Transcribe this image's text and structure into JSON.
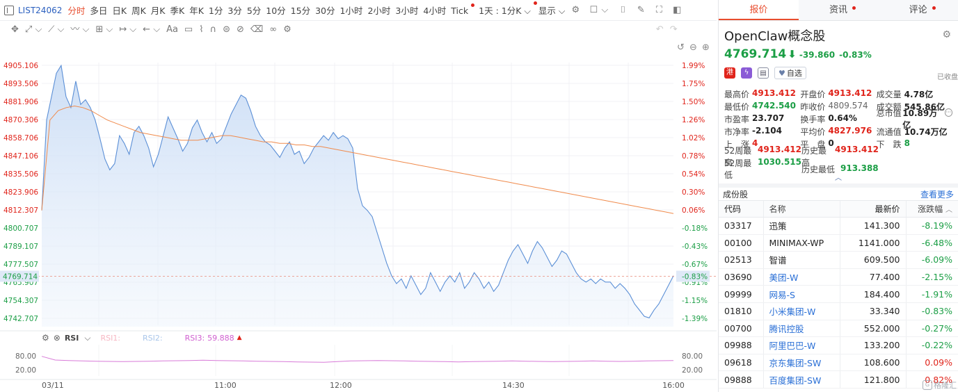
{
  "topbar": {
    "symbol": "LIST24062",
    "periods": [
      "分时",
      "多日",
      "日K",
      "周K",
      "月K",
      "季K",
      "年K",
      "1分",
      "3分",
      "5分",
      "10分",
      "15分",
      "30分",
      "1小时",
      "2小时",
      "3小时",
      "4小时",
      "Tick"
    ],
    "active_period": "分时",
    "multi_period": "1天 : 1分K",
    "display": "显示"
  },
  "chart": {
    "price_ticks": [
      "4905.106",
      "4893.506",
      "4881.906",
      "4870.306",
      "4858.706",
      "4847.106",
      "4835.506",
      "4823.906",
      "4812.307",
      "4800.707",
      "4789.107",
      "4777.507",
      "4765.907",
      "4754.307",
      "4742.707"
    ],
    "pct_ticks": [
      "1.99%",
      "1.75%",
      "1.50%",
      "1.26%",
      "1.02%",
      "0.78%",
      "0.54%",
      "0.30%",
      "0.06%",
      "-0.18%",
      "-0.43%",
      "-0.67%",
      "-0.91%",
      "-1.15%",
      "-1.39%"
    ],
    "current_price_label": "4769.714",
    "current_pct_label": "-0.83%",
    "time_labels": [
      "03/11",
      "11:00",
      "12:00",
      "14:30",
      "16:00"
    ],
    "rsi": {
      "name": "RSI",
      "l1": "RSI1:",
      "l2": "RSI2:",
      "l3": "RSI3:",
      "v3": "59.888",
      "ticks": [
        "80.00",
        "20.00"
      ]
    }
  },
  "chart_data": {
    "type": "line",
    "x_labels": [
      "03/11",
      "11:00",
      "12:00",
      "14:30",
      "16:00"
    ],
    "prev_close": 4809.574,
    "ylim": [
      4742.707,
      4905.106
    ],
    "series": [
      {
        "values": [
          4812,
          4870,
          4885,
          4900,
          4905,
          4885,
          4878,
          4895,
          4880,
          4883,
          4878,
          4870,
          4858,
          4845,
          4838,
          4842,
          4860,
          4855,
          4848,
          4862,
          4866,
          4860,
          4852,
          4840,
          4848,
          4860,
          4872,
          4865,
          4858,
          4850,
          4855,
          4865,
          4870,
          4862,
          4856,
          4862,
          4855,
          4858,
          4866,
          4874,
          4880,
          4886,
          4884,
          4876,
          4866,
          4860,
          4856,
          4854,
          4850,
          4846,
          4852,
          4856,
          4848,
          4850,
          4842,
          4846,
          4852,
          4856,
          4860,
          4857,
          4862,
          4858,
          4860,
          4858,
          4852,
          4826,
          4815,
          4812,
          4808,
          4798,
          4788,
          4778,
          4770,
          4765,
          4768,
          4762,
          4770,
          4764,
          4758,
          4762,
          4772,
          4766,
          4760,
          4766,
          4770,
          4766,
          4772,
          4762,
          4766,
          4772,
          4768,
          4762,
          4766,
          4760,
          4764,
          4772,
          4780,
          4786,
          4790,
          4784,
          4778,
          4786,
          4792,
          4788,
          4782,
          4776,
          4780,
          4786,
          4784,
          4778,
          4772,
          4768,
          4766,
          4768,
          4765,
          4768,
          4766,
          4766,
          4762,
          4765,
          4762,
          4758,
          4752,
          4748,
          4744,
          4743,
          4748,
          4752,
          4758,
          4764,
          4770
        ]
      },
      {
        "values": [
          4812,
          4870,
          4876,
          4878,
          4879,
          4878,
          4876,
          4873,
          4870,
          4868,
          4866,
          4864,
          4862,
          4861,
          4860,
          4859,
          4858,
          4857,
          4857,
          4857,
          4858,
          4859,
          4860,
          4860,
          4859,
          4858,
          4857,
          4856,
          4856,
          4855,
          4855,
          4854,
          4854,
          4853,
          4853,
          4852,
          4851,
          4850,
          4849,
          4848,
          4847,
          4846,
          4845,
          4844,
          4843,
          4842,
          4841,
          4840,
          4839,
          4838,
          4837,
          4836,
          4835,
          4834,
          4833,
          4832,
          4831,
          4830,
          4829,
          4828,
          4827,
          4826,
          4825,
          4824,
          4823,
          4822,
          4821,
          4820,
          4819,
          4818,
          4817,
          4816,
          4815,
          4814,
          4813,
          4812,
          4811,
          4810
        ]
      }
    ],
    "rsi_ylim": [
      0,
      100
    ],
    "rsi3_values": [
      78,
      62,
      60,
      58,
      57,
      56,
      55,
      56,
      57,
      58,
      59,
      60,
      61,
      60,
      59,
      58,
      57,
      56,
      55,
      54,
      53,
      52,
      55,
      58,
      59,
      60,
      59,
      58,
      57,
      56,
      55,
      54,
      55,
      56,
      57,
      58,
      57,
      56,
      55,
      56,
      57,
      58,
      57,
      56,
      57,
      58,
      59,
      60
    ]
  },
  "tabs": [
    "报价",
    "资讯",
    "评论"
  ],
  "quote": {
    "name": "OpenClaw概念股",
    "price": "4769.714",
    "arrow": "⬇",
    "change": "-39.860",
    "pct": "-0.83%",
    "status": "已收盘",
    "hk_badge": "港",
    "watch_label": "自选",
    "stats": [
      [
        {
          "k": "最高价",
          "v": "4913.412",
          "c": "red"
        },
        {
          "k": "开盘价",
          "v": "4913.412",
          "c": "red"
        },
        {
          "k": "成交量",
          "v": "4.78亿",
          "c": "dark"
        }
      ],
      [
        {
          "k": "最低价",
          "v": "4742.540",
          "c": "green"
        },
        {
          "k": "昨收价",
          "v": "4809.574",
          "c": "gray"
        },
        {
          "k": "成交额",
          "v": "545.86亿",
          "c": "dark"
        }
      ],
      [
        {
          "k": "市盈率",
          "v": "23.707",
          "c": "dark"
        },
        {
          "k": "换手率",
          "v": "0.64%",
          "c": "dark"
        },
        {
          "k": "总市值",
          "v": "10.89万亿",
          "c": "dark"
        }
      ],
      [
        {
          "k": "市净率",
          "v": "-2.104",
          "c": "dark"
        },
        {
          "k": "平均价",
          "v": "4827.976",
          "c": "red"
        },
        {
          "k": "流通值",
          "v": "10.74万亿",
          "c": "dark"
        }
      ],
      [
        {
          "k": "上　涨",
          "v": "4",
          "c": "red"
        },
        {
          "k": "平　盘",
          "v": "0",
          "c": "dark"
        },
        {
          "k": "下　跌",
          "v": "8",
          "c": "green"
        }
      ]
    ],
    "w52": [
      [
        {
          "k": "52周最高",
          "v": "4913.412",
          "c": "red"
        },
        {
          "k": "历史最高",
          "v": "4913.412",
          "c": "red"
        }
      ],
      [
        {
          "k": "52周最低",
          "v": "1030.515",
          "c": "green"
        },
        {
          "k": "历史最低",
          "v": "913.388",
          "c": "green"
        }
      ]
    ]
  },
  "constituents": {
    "title": "成份股",
    "more": "查看更多",
    "headers": [
      "代码",
      "名称",
      "最新价",
      "涨跌幅"
    ],
    "rows": [
      {
        "code": "03317",
        "name": "迅策",
        "last": "141.300",
        "pct": "-8.19%",
        "name_color": "dark",
        "pct_color": "green"
      },
      {
        "code": "00100",
        "name": "MINIMAX-WP",
        "last": "1141.000",
        "pct": "-6.48%",
        "name_color": "dark",
        "pct_color": "green"
      },
      {
        "code": "02513",
        "name": "智谱",
        "last": "609.500",
        "pct": "-6.09%",
        "name_color": "dark",
        "pct_color": "green"
      },
      {
        "code": "03690",
        "name": "美团-W",
        "last": "77.400",
        "pct": "-2.15%",
        "name_color": "blue",
        "pct_color": "green"
      },
      {
        "code": "09999",
        "name": "网易-S",
        "last": "184.400",
        "pct": "-1.91%",
        "name_color": "blue",
        "pct_color": "green"
      },
      {
        "code": "01810",
        "name": "小米集团-W",
        "last": "33.340",
        "pct": "-0.83%",
        "name_color": "blue",
        "pct_color": "green"
      },
      {
        "code": "00700",
        "name": "腾讯控股",
        "last": "552.000",
        "pct": "-0.27%",
        "name_color": "blue",
        "pct_color": "green"
      },
      {
        "code": "09988",
        "name": "阿里巴巴-W",
        "last": "133.200",
        "pct": "-0.22%",
        "name_color": "blue",
        "pct_color": "green"
      },
      {
        "code": "09618",
        "name": "京东集团-SW",
        "last": "108.600",
        "pct": "0.09%",
        "name_color": "blue",
        "pct_color": "red"
      },
      {
        "code": "09888",
        "name": "百度集团-SW",
        "last": "121.800",
        "pct": "0.82%",
        "name_color": "blue",
        "pct_color": "red"
      }
    ]
  },
  "watermark": "格隆汇",
  "colors": {
    "up": "#e0241b",
    "down": "#1b9e45",
    "price_line": "#5b8fd6",
    "avg_line": "#f08a4b",
    "rsi_line": "#d87ad8",
    "accent": "#e84d2e"
  }
}
